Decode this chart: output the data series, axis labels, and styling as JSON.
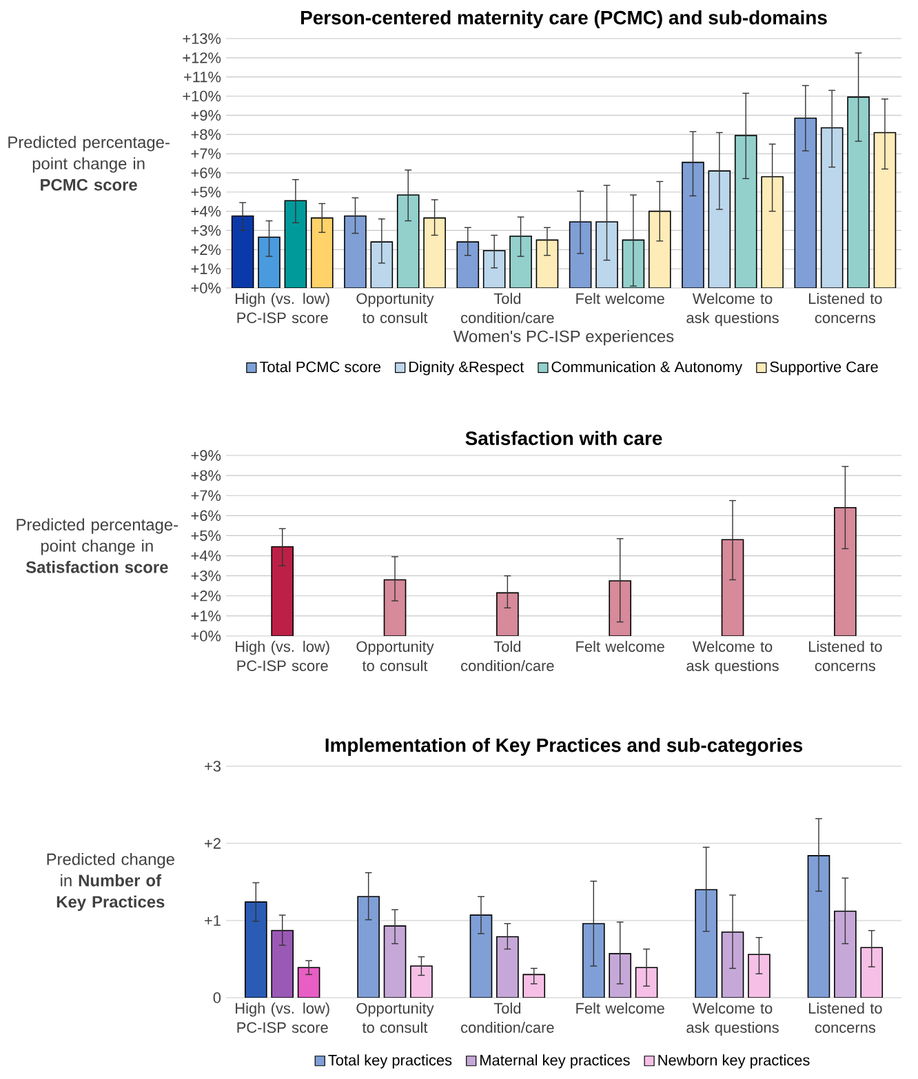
{
  "chart_data": [
    {
      "type": "bar",
      "title": "Person-centered maternity care (PCMC) and sub-domains",
      "xlabel": "Women's PC-ISP experiences",
      "ylabel": "Predicted percentage-point change in **PCMC score**",
      "categories": [
        "High (vs. low) PC-ISP score",
        "Opportunity to consult",
        "Told condition/care",
        "Felt welcome",
        "Welcome to ask questions",
        "Listened to concerns"
      ],
      "series": [
        {
          "name": "Total PCMC score",
          "color": "#7f9fd6",
          "colors": [
            "#0a3aaa",
            "#7f9fd6",
            "#7f9fd6",
            "#7f9fd6",
            "#7f9fd6",
            "#7f9fd6"
          ],
          "values": [
            3.75,
            3.75,
            2.4,
            3.45,
            6.55,
            8.85
          ],
          "errors": [
            [
              3.0,
              4.45
            ],
            [
              2.85,
              4.7
            ],
            [
              1.7,
              3.15
            ],
            [
              1.8,
              5.05
            ],
            [
              4.8,
              8.15
            ],
            [
              7.15,
              10.55
            ]
          ]
        },
        {
          "name": "Dignity &Respect",
          "color": "#bcd6ec",
          "colors": [
            "#4a9ade",
            "#bcd6ec",
            "#bcd6ec",
            "#bcd6ec",
            "#bcd6ec",
            "#bcd6ec"
          ],
          "values": [
            2.65,
            2.4,
            1.95,
            3.45,
            6.1,
            8.35
          ],
          "errors": [
            [
              1.65,
              3.5
            ],
            [
              1.3,
              3.6
            ],
            [
              1.05,
              2.75
            ],
            [
              1.45,
              5.35
            ],
            [
              4.1,
              8.1
            ],
            [
              6.3,
              10.3
            ]
          ]
        },
        {
          "name": "Communication & Autonomy",
          "color": "#93d0cc",
          "colors": [
            "#009a9a",
            "#93d0cc",
            "#93d0cc",
            "#93d0cc",
            "#93d0cc",
            "#93d0cc"
          ],
          "values": [
            4.55,
            4.85,
            2.7,
            2.5,
            7.95,
            9.95
          ],
          "errors": [
            [
              3.4,
              5.65
            ],
            [
              3.5,
              6.15
            ],
            [
              1.65,
              3.7
            ],
            [
              0.1,
              4.85
            ],
            [
              5.7,
              10.15
            ],
            [
              7.65,
              12.25
            ]
          ]
        },
        {
          "name": "Supportive Care",
          "color": "#fdebb8",
          "colors": [
            "#ffd26a",
            "#fdebb8",
            "#fdebb8",
            "#fdebb8",
            "#fdebb8",
            "#fdebb8"
          ],
          "values": [
            3.65,
            3.65,
            2.5,
            4.0,
            5.8,
            8.1
          ],
          "errors": [
            [
              2.9,
              4.4
            ],
            [
              2.75,
              4.6
            ],
            [
              1.7,
              3.15
            ],
            [
              2.45,
              5.55
            ],
            [
              4.0,
              7.5
            ],
            [
              6.2,
              9.85
            ]
          ]
        }
      ],
      "ylim": [
        0,
        13
      ],
      "yticks": [
        {
          "value": 0,
          "label": "+0%"
        },
        {
          "value": 1,
          "label": "+1%"
        },
        {
          "value": 2,
          "label": "+2%"
        },
        {
          "value": 3,
          "label": "+3%"
        },
        {
          "value": 4,
          "label": "+4%"
        },
        {
          "value": 5,
          "label": "+5%"
        },
        {
          "value": 6,
          "label": "+6%"
        },
        {
          "value": 7,
          "label": "+7%"
        },
        {
          "value": 8,
          "label": "+8%"
        },
        {
          "value": 9,
          "label": "+9%"
        },
        {
          "value": 10,
          "label": "+10%"
        },
        {
          "value": 11,
          "label": "+11%"
        },
        {
          "value": 12,
          "label": "+12%"
        },
        {
          "value": 13,
          "label": "+13%"
        }
      ],
      "grid": "y",
      "legend": "bottom"
    },
    {
      "type": "bar",
      "title": "Satisfaction with care",
      "ylabel": "Predicted percentage-point change in **Satisfaction score**",
      "categories": [
        "High (vs. low) PC-ISP score",
        "Opportunity to consult",
        "Told condition/care",
        "Felt welcome",
        "Welcome to ask questions",
        "Listened to concerns"
      ],
      "series": [
        {
          "colors": [
            "#bc2046",
            "#d68a9a",
            "#d68a9a",
            "#d68a9a",
            "#d68a9a",
            "#d68a9a"
          ],
          "values": [
            4.45,
            2.8,
            2.15,
            2.75,
            4.8,
            6.4
          ],
          "errors": [
            [
              3.5,
              5.35
            ],
            [
              1.75,
              3.95
            ],
            [
              1.4,
              3.0
            ],
            [
              0.7,
              4.85
            ],
            [
              2.8,
              6.75
            ],
            [
              4.35,
              8.45
            ]
          ]
        }
      ],
      "ylim": [
        0,
        9
      ],
      "yticks": [
        {
          "value": 0,
          "label": "+0%"
        },
        {
          "value": 1,
          "label": "+1%"
        },
        {
          "value": 2,
          "label": "+2%"
        },
        {
          "value": 3,
          "label": "+3%"
        },
        {
          "value": 4,
          "label": "+4%"
        },
        {
          "value": 5,
          "label": "+5%"
        },
        {
          "value": 6,
          "label": "+6%"
        },
        {
          "value": 7,
          "label": "+7%"
        },
        {
          "value": 8,
          "label": "+8%"
        },
        {
          "value": 9,
          "label": "+9%"
        }
      ],
      "grid": "y"
    },
    {
      "type": "bar",
      "title": "Implementation of Key Practices and sub-categories",
      "ylabel": "Predicted change in **Number of Key Practices**",
      "categories": [
        "High (vs. low) PC-ISP score",
        "Opportunity to consult",
        "Told condition/care",
        "Felt welcome",
        "Welcome to ask questions",
        "Listened to concerns"
      ],
      "series": [
        {
          "name": "Total key practices",
          "color": "#7f9fd6",
          "colors": [
            "#2a5cb5",
            "#7f9fd6",
            "#7f9fd6",
            "#7f9fd6",
            "#7f9fd6",
            "#7f9fd6"
          ],
          "values": [
            1.24,
            1.31,
            1.07,
            0.96,
            1.4,
            1.84
          ],
          "errors": [
            [
              0.99,
              1.49
            ],
            [
              1.01,
              1.62
            ],
            [
              0.83,
              1.31
            ],
            [
              0.41,
              1.51
            ],
            [
              0.86,
              1.95
            ],
            [
              1.38,
              2.32
            ]
          ]
        },
        {
          "name": "Maternal key practices",
          "color": "#c6a8d8",
          "colors": [
            "#9b59b6",
            "#c6a8d8",
            "#c6a8d8",
            "#c6a8d8",
            "#c6a8d8",
            "#c6a8d8"
          ],
          "values": [
            0.87,
            0.93,
            0.79,
            0.57,
            0.85,
            1.12
          ],
          "errors": [
            [
              0.68,
              1.07
            ],
            [
              0.7,
              1.14
            ],
            [
              0.63,
              0.96
            ],
            [
              0.18,
              0.98
            ],
            [
              0.38,
              1.33
            ],
            [
              0.7,
              1.55
            ]
          ]
        },
        {
          "name": "Newborn key practices",
          "color": "#f6c0e6",
          "colors": [
            "#e85ec4",
            "#f6c0e6",
            "#f6c0e6",
            "#f6c0e6",
            "#f6c0e6",
            "#f6c0e6"
          ],
          "values": [
            0.39,
            0.41,
            0.3,
            0.39,
            0.56,
            0.65
          ],
          "errors": [
            [
              0.3,
              0.48
            ],
            [
              0.29,
              0.53
            ],
            [
              0.18,
              0.38
            ],
            [
              0.15,
              0.63
            ],
            [
              0.31,
              0.78
            ],
            [
              0.4,
              0.87
            ]
          ]
        }
      ],
      "ylim": [
        0,
        3
      ],
      "yticks": [
        0,
        {
          "value": 1,
          "label": "+1"
        },
        {
          "value": 2,
          "label": "+2"
        },
        {
          "value": 3,
          "label": "+3"
        }
      ],
      "grid": "y",
      "legend": "bottom"
    }
  ]
}
